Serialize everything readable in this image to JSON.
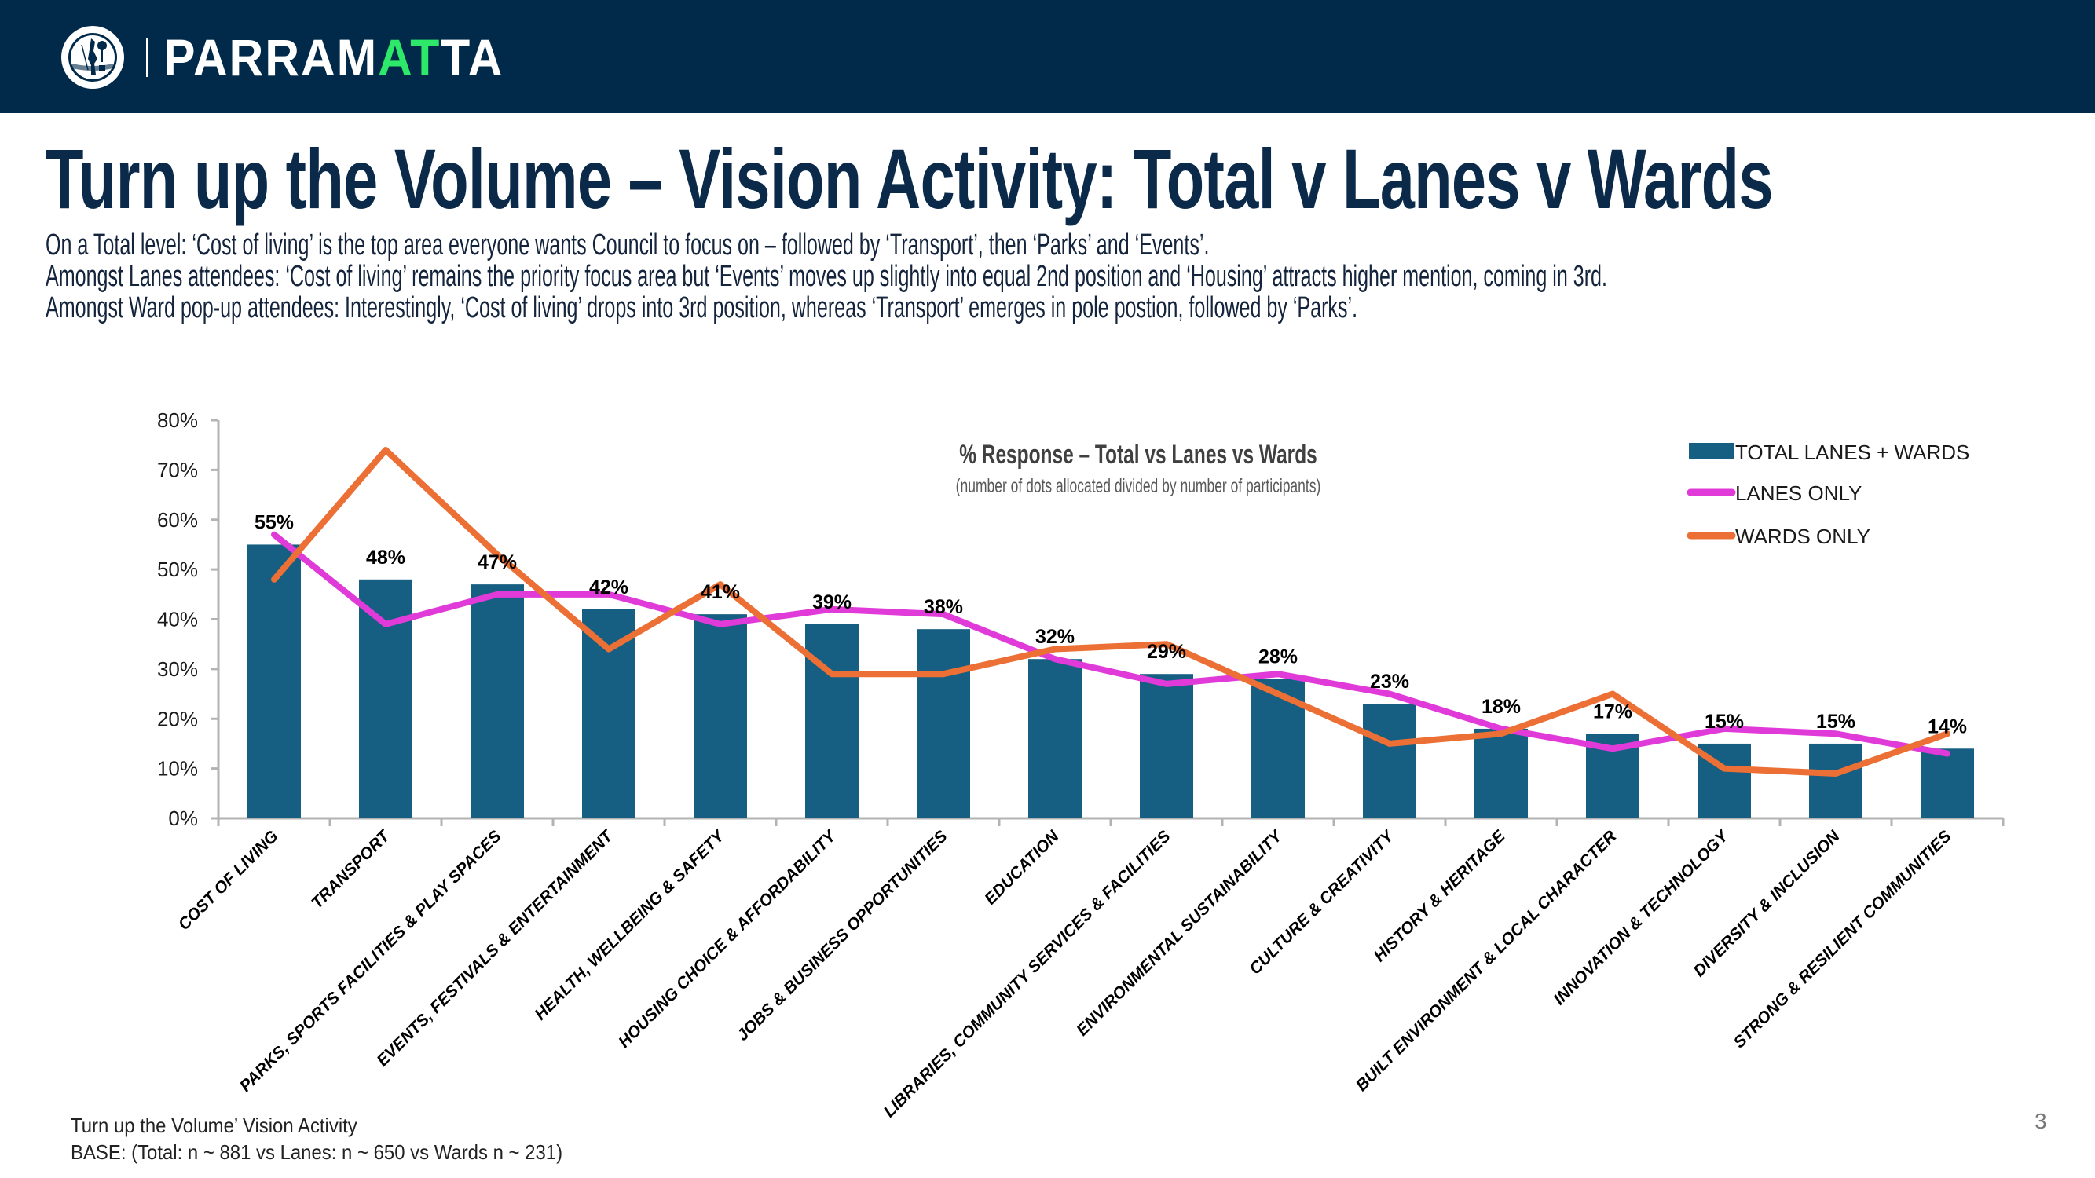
{
  "header": {
    "logo_icon": "parramatta-seal-icon",
    "brand_text_pre": "PARRAM",
    "brand_text_accent": "AT",
    "brand_text_post": "TA",
    "background_color": "#012a4a",
    "accent_color": "#2ee86a"
  },
  "page": {
    "title": "Turn up the Volume – Vision Activity: Total v Lanes v Wards",
    "intro_lines": [
      "On a Total level: ‘Cost of living’ is the top area everyone wants Council to focus on – followed by ‘Transport’, then ‘Parks’ and ‘Events’.",
      "Amongst Lanes attendees: ‘Cost of living’ remains the priority focus area but ‘Events’ moves up slightly into equal 2nd position and ‘Housing’ attracts higher mention, coming in 3rd.",
      "Amongst Ward pop-up attendees: Interestingly, ‘Cost of living’ drops into 3rd position, whereas ‘Transport’ emerges in pole postion, followed by ‘Parks’."
    ],
    "footnote_lines": [
      "Turn up the Volume’ Vision Activity",
      "BASE: (Total: n ~ 881 vs Lanes: n ~ 650 vs Wards n ~ 231)"
    ],
    "page_number": "3"
  },
  "chart_data": {
    "type": "bar",
    "title": "% Response – Total vs Lanes vs Wards",
    "subtitle": "(number of dots allocated divided by number of participants)",
    "xlabel": "",
    "ylabel": "",
    "ylim": [
      0,
      80
    ],
    "yticks": [
      0,
      10,
      20,
      30,
      40,
      50,
      60,
      70,
      80
    ],
    "ytick_labels": [
      "0%",
      "10%",
      "20%",
      "30%",
      "40%",
      "50%",
      "60%",
      "70%",
      "80%"
    ],
    "grid": false,
    "legend_position": "top-right",
    "categories": [
      "COST OF LIVING",
      "TRANSPORT",
      "PARKS, SPORTS FACILITIES & PLAY SPACES",
      "EVENTS, FESTIVALS & ENTERTAINMENT",
      "HEALTH, WELLBEING & SAFETY",
      "HOUSING CHOICE & AFFORDABILITY",
      "JOBS & BUSINESS OPPORTUNITIES",
      "EDUCATION",
      "LIBRARIES, COMMUNITY SERVICES & FACILITIES",
      "ENVIRONMENTAL SUSTAINABILITY",
      "CULTURE & CREATIVITY",
      "HISTORY & HERITAGE",
      "BUILT ENVIRONMENT & LOCAL CHARACTER",
      "INNOVATION & TECHNOLOGY",
      "DIVERSITY & INCLUSION",
      "STRONG & RESILIENT COMMUNITIES"
    ],
    "series": [
      {
        "name": "TOTAL LANES + WARDS",
        "type": "bar",
        "color": "#165f82",
        "values": [
          55,
          48,
          47,
          42,
          41,
          39,
          38,
          32,
          29,
          28,
          23,
          18,
          17,
          15,
          15,
          14
        ],
        "data_labels": [
          "55%",
          "48%",
          "47%",
          "42%",
          "41%",
          "39%",
          "38%",
          "32%",
          "29%",
          "28%",
          "23%",
          "18%",
          "17%",
          "15%",
          "15%",
          "14%"
        ]
      },
      {
        "name": "LANES ONLY",
        "type": "line",
        "color": "#e03ad8",
        "values": [
          57,
          39,
          45,
          45,
          39,
          42,
          41,
          32,
          27,
          29,
          25,
          18,
          14,
          18,
          17,
          13
        ]
      },
      {
        "name": "WARDS ONLY",
        "type": "line",
        "color": "#ec7035",
        "values": [
          48,
          74,
          53,
          34,
          47,
          29,
          29,
          34,
          35,
          25,
          15,
          17,
          25,
          10,
          9,
          17
        ]
      }
    ]
  }
}
